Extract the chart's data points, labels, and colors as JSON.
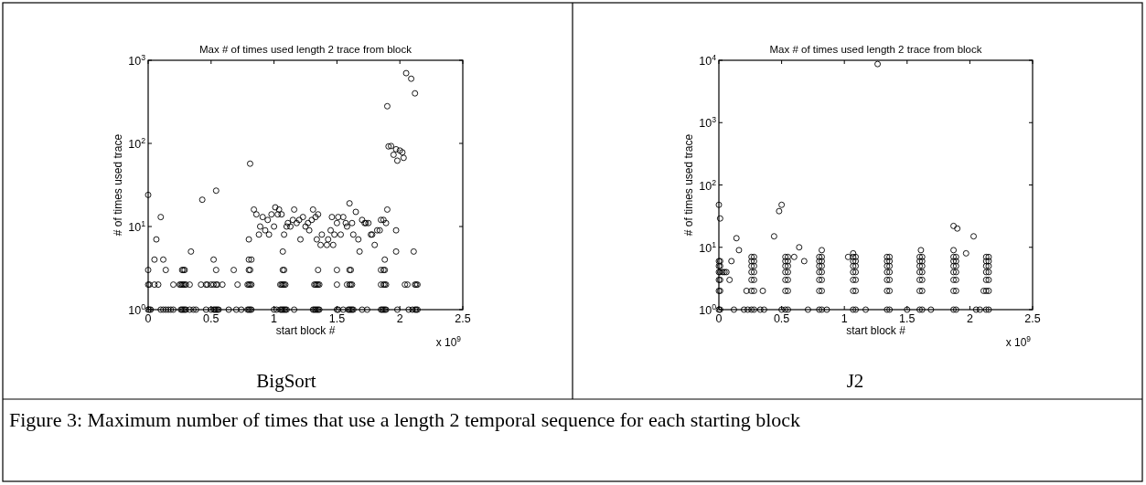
{
  "chart_data": [
    {
      "type": "scatter",
      "title": "Max # of times used length 2 trace from block",
      "xlabel": "start block #",
      "ylabel": "# of times used trace",
      "annotations": [
        "x 10$^{9}$",
        "BigSort",
        "Figure 3:  Maximum number of times that use a length 2 temporal sequence for each starting block"
      ],
      "log": "y",
      "marker": "circle",
      "xlim": [
        0,
        2.5
      ],
      "xticks": [
        0,
        0.5,
        1,
        1.5,
        2,
        2.5
      ],
      "ylim": [
        1,
        1000
      ],
      "yticks": [
        {
          "value": 1,
          "label": "10$^{0}$"
        },
        {
          "value": 10,
          "label": "10$^{1}$"
        },
        {
          "value": 100,
          "label": "10$^{2}$"
        },
        {
          "value": 1000,
          "label": "10$^{3}$"
        }
      ],
      "series": [
        {
          "color": "#000000",
          "x": [
            0,
            0.43,
            0.54,
            0.81,
            1.9,
            2.05,
            2.09,
            2.12,
            1.91,
            1.93,
            1.95,
            1.97,
            1.98,
            2.0,
            2.02,
            2.03,
            0.1,
            0.065,
            0.34,
            0.05,
            0.12,
            0.52,
            0.8,
            0.84,
            0.86,
            0.88,
            0.89,
            0.91,
            0.93,
            0.95,
            0.96,
            0.98,
            1.0,
            1.01,
            1.03,
            1.04,
            1.06,
            1.08,
            1.07,
            1.1,
            1.11,
            1.13,
            1.15,
            1.16,
            1.18,
            1.2,
            1.21,
            1.23,
            1.25,
            1.27,
            1.28,
            1.3,
            1.31,
            1.33,
            1.34,
            1.35,
            1.37,
            1.38,
            1.42,
            1.43,
            1.45,
            1.46,
            1.47,
            1.48,
            1.5,
            1.51,
            1.53,
            1.55,
            1.57,
            1.58,
            1.6,
            1.62,
            1.63,
            1.65,
            1.67,
            1.68,
            1.7,
            1.72,
            1.73,
            1.75,
            1.77,
            1.78,
            1.8,
            1.82,
            1.84,
            1.85,
            1.87,
            1.89,
            1.9,
            1.88,
            1.97,
            1.97,
            2.11,
            0.8,
            0.82
          ],
          "values": [
            24,
            21,
            27,
            57,
            280,
            700,
            600,
            400,
            92,
            93,
            73,
            85,
            62,
            82,
            78,
            67,
            13,
            7,
            5,
            4,
            4,
            4,
            7,
            16,
            14,
            8,
            10,
            13,
            9,
            12,
            8,
            14,
            10,
            17,
            14,
            16,
            14,
            8,
            5,
            10,
            11,
            10,
            12,
            16,
            11,
            12,
            7,
            13,
            10,
            11,
            9,
            12,
            16,
            13,
            7,
            14,
            6,
            8,
            6,
            7,
            9,
            13,
            6,
            8,
            11,
            13,
            8,
            13,
            11,
            10,
            19,
            11,
            8,
            15,
            7,
            5,
            12,
            11,
            11,
            11,
            8,
            8,
            6,
            9,
            9,
            12,
            12,
            11,
            16,
            4,
            9,
            5,
            5,
            4,
            4
          ]
        },
        {
          "color": "#000000",
          "x": [
            0,
            0.14,
            0.27,
            0.28,
            0.29,
            0.54,
            0.68,
            0.8,
            0.81,
            1.07,
            1.08,
            1.35,
            1.5,
            1.6,
            1.61,
            1.85,
            1.87,
            1.88
          ],
          "values": [
            3,
            3,
            3,
            3,
            3,
            3,
            3,
            3,
            3,
            3,
            3,
            3,
            3,
            3,
            3,
            3,
            3,
            3
          ]
        },
        {
          "color": "#000000",
          "x": [
            0,
            0.01,
            0.05,
            0.08,
            0.2,
            0.25,
            0.26,
            0.27,
            0.28,
            0.29,
            0.3,
            0.33,
            0.42,
            0.46,
            0.47,
            0.5,
            0.52,
            0.54,
            0.55,
            0.59,
            0.71,
            0.79,
            0.8,
            0.81,
            0.82,
            1.05,
            1.06,
            1.07,
            1.08,
            1.09,
            1.32,
            1.33,
            1.34,
            1.35,
            1.36,
            1.5,
            1.58,
            1.6,
            1.61,
            1.62,
            1.85,
            1.87,
            1.88,
            1.89,
            2.04,
            2.06,
            2.12,
            2.13,
            2.14
          ],
          "values": [
            2,
            2,
            2,
            2,
            2,
            2,
            2,
            2,
            2,
            2,
            2,
            2,
            2,
            2,
            2,
            2,
            2,
            2,
            2,
            2,
            2,
            2,
            2,
            2,
            2,
            2,
            2,
            2,
            2,
            2,
            2,
            2,
            2,
            2,
            2,
            2,
            2,
            2,
            2,
            2,
            2,
            2,
            2,
            2,
            2,
            2,
            2,
            2,
            2
          ]
        },
        {
          "color": "#000000",
          "x": [
            0,
            0.01,
            0.02,
            0.1,
            0.12,
            0.14,
            0.16,
            0.18,
            0.2,
            0.26,
            0.27,
            0.28,
            0.29,
            0.3,
            0.33,
            0.36,
            0.38,
            0.46,
            0.5,
            0.52,
            0.53,
            0.54,
            0.55,
            0.56,
            0.64,
            0.7,
            0.74,
            0.79,
            0.8,
            0.81,
            0.82,
            1.0,
            1.02,
            1.05,
            1.06,
            1.07,
            1.08,
            1.09,
            1.1,
            1.16,
            1.31,
            1.32,
            1.33,
            1.34,
            1.35,
            1.36,
            1.5,
            1.51,
            1.55,
            1.59,
            1.6,
            1.61,
            1.62,
            1.63,
            1.7,
            1.74,
            1.85,
            1.86,
            1.87,
            1.88,
            1.89,
            1.98,
            2.07,
            2.1,
            2.12,
            2.13,
            2.14
          ],
          "values": [
            1,
            1,
            1,
            1,
            1,
            1,
            1,
            1,
            1,
            1,
            1,
            1,
            1,
            1,
            1,
            1,
            1,
            1,
            1,
            1,
            1,
            1,
            1,
            1,
            1,
            1,
            1,
            1,
            1,
            1,
            1,
            1,
            1,
            1,
            1,
            1,
            1,
            1,
            1,
            1,
            1,
            1,
            1,
            1,
            1,
            1,
            1,
            1,
            1,
            1,
            1,
            1,
            1,
            1,
            1,
            1,
            1,
            1,
            1,
            1,
            1,
            1,
            1,
            1,
            1,
            1,
            1
          ]
        }
      ]
    },
    {
      "type": "scatter",
      "title": "Max # of times used length 2 trace from block",
      "xlabel": "start block #",
      "ylabel": "# of times used trace",
      "annotations": [
        "x 10$^{9}$",
        "J2"
      ],
      "log": "y",
      "marker": "circle",
      "xlim": [
        0,
        2.5
      ],
      "xticks": [
        0,
        0.5,
        1,
        1.5,
        2,
        2.5
      ],
      "ylim": [
        1,
        10000
      ],
      "yticks": [
        {
          "value": 1,
          "label": "10$^{0}$"
        },
        {
          "value": 10,
          "label": "10$^{1}$"
        },
        {
          "value": 100,
          "label": "10$^{2}$"
        },
        {
          "value": 1000,
          "label": "10$^{3}$"
        },
        {
          "value": 10000,
          "label": "10$^{4}$"
        }
      ],
      "series": [
        {
          "color": "#000000",
          "x": [
            1.265,
            0,
            0.5,
            0.48,
            0.01,
            0.44,
            0.14,
            0.16,
            0.1,
            0.03,
            0.045,
            0.06,
            0.085,
            0.64,
            0.6,
            0.68,
            1.87,
            1.9,
            2.03,
            1.97,
            1.61,
            1.03,
            1.07,
            0.82,
            1.87,
            0.22,
            0.35,
            2.11,
            0.12,
            0.2,
            0.23,
            0.33,
            0.36,
            0.5,
            0.71,
            0.86,
            1.17,
            1.5,
            1.69,
            2.05,
            2.08
          ],
          "values": [
            8700,
            48,
            48,
            38,
            29,
            15,
            14,
            9,
            6,
            4,
            4,
            4,
            3,
            10,
            7,
            6,
            22,
            20,
            15,
            8,
            9,
            7,
            8,
            9,
            9,
            2,
            2,
            2,
            1,
            1,
            1,
            1,
            1,
            1,
            1,
            1,
            1,
            1,
            1,
            1,
            1
          ]
        },
        {
          "color": "#000000",
          "x": [
            0,
            0.01,
            0.26,
            0.28,
            0.53,
            0.55,
            0.8,
            0.82,
            1.07,
            1.09,
            1.34,
            1.36,
            1.6,
            1.62,
            1.87,
            1.89,
            2.13,
            2.15
          ],
          "values": [
            1,
            1,
            1,
            1,
            1,
            1,
            1,
            1,
            1,
            1,
            1,
            1,
            1,
            1,
            1,
            1,
            1,
            1
          ]
        },
        {
          "color": "#000000",
          "x": [
            0,
            0.01,
            0.26,
            0.28,
            0.53,
            0.55,
            0.8,
            0.82,
            1.07,
            1.09,
            1.34,
            1.36,
            1.6,
            1.62,
            1.87,
            1.89,
            2.13,
            2.15
          ],
          "values": [
            2,
            2,
            2,
            2,
            2,
            2,
            2,
            2,
            2,
            2,
            2,
            2,
            2,
            2,
            2,
            2,
            2,
            2
          ]
        },
        {
          "color": "#000000",
          "x": [
            0,
            0.01,
            0.26,
            0.28,
            0.53,
            0.55,
            0.8,
            0.82,
            1.07,
            1.09,
            1.34,
            1.36,
            1.6,
            1.62,
            1.87,
            1.89,
            2.13,
            2.15
          ],
          "values": [
            3,
            3,
            3,
            3,
            3,
            3,
            3,
            3,
            3,
            3,
            3,
            3,
            3,
            3,
            3,
            3,
            3,
            3
          ]
        },
        {
          "color": "#000000",
          "x": [
            0,
            0.01,
            0.26,
            0.28,
            0.53,
            0.55,
            0.8,
            0.82,
            1.07,
            1.09,
            1.34,
            1.36,
            1.6,
            1.62,
            1.87,
            1.89,
            2.13,
            2.15
          ],
          "values": [
            4,
            4,
            4,
            4,
            4,
            4,
            4,
            4,
            4,
            4,
            4,
            4,
            4,
            4,
            4,
            4,
            4,
            4
          ]
        },
        {
          "color": "#000000",
          "x": [
            0,
            0.01,
            0.26,
            0.28,
            0.53,
            0.55,
            0.8,
            0.82,
            1.07,
            1.09,
            1.34,
            1.36,
            1.6,
            1.62,
            1.87,
            1.89,
            2.13,
            2.15
          ],
          "values": [
            5,
            5,
            5,
            5,
            5,
            5,
            5,
            5,
            5,
            5,
            5,
            5,
            5,
            5,
            5,
            5,
            5,
            5
          ]
        },
        {
          "color": "#000000",
          "x": [
            0,
            0.01,
            0.26,
            0.28,
            0.53,
            0.55,
            0.8,
            0.82,
            1.07,
            1.09,
            1.34,
            1.36,
            1.6,
            1.62,
            1.87,
            1.89,
            2.13,
            2.15
          ],
          "values": [
            6,
            6,
            6,
            6,
            6,
            6,
            6,
            6,
            6,
            6,
            6,
            6,
            6,
            6,
            6,
            6,
            6,
            6
          ]
        },
        {
          "color": "#000000",
          "x": [
            0.26,
            0.28,
            0.53,
            0.55,
            0.8,
            0.82,
            1.07,
            1.09,
            1.34,
            1.36,
            1.6,
            1.62,
            1.87,
            1.89,
            2.13,
            2.15
          ],
          "values": [
            7,
            7,
            7,
            7,
            7,
            7,
            7,
            7,
            7,
            7,
            7,
            7,
            7,
            7,
            7,
            7
          ]
        }
      ]
    }
  ]
}
